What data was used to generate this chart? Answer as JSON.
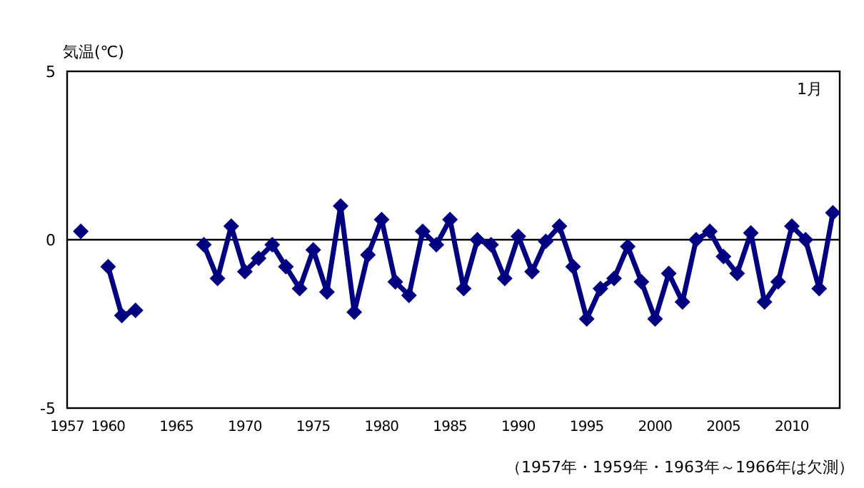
{
  "chart_data": {
    "type": "line",
    "ylabel": "気温(℃)",
    "x": [
      1958,
      1959,
      1960,
      1961,
      1962,
      1963,
      1966,
      1967,
      1968,
      1969,
      1970,
      1971,
      1972,
      1973,
      1974,
      1975,
      1976,
      1977,
      1978,
      1979,
      1980,
      1981,
      1982,
      1983,
      1984,
      1985,
      1986,
      1987,
      1988,
      1989,
      1990,
      1991,
      1992,
      1993,
      1994,
      1995,
      1996,
      1997,
      1998,
      1999,
      2000,
      2001,
      2002,
      2003,
      2004,
      2005,
      2006,
      2007,
      2008,
      2009,
      2010,
      2011,
      2012,
      2013
    ],
    "series": [
      {
        "color": "#000080",
        "values": [
          0.25,
          null,
          -0.8,
          -2.25,
          -2.1,
          null,
          null,
          -0.15,
          -1.15,
          0.4,
          -0.95,
          -0.55,
          -0.15,
          -0.8,
          -1.45,
          -0.3,
          -1.55,
          1.0,
          -2.15,
          -0.45,
          0.6,
          -1.25,
          -1.65,
          0.25,
          -0.15,
          0.6,
          -1.45,
          0.0,
          -0.15,
          -1.15,
          0.1,
          -0.95,
          -0.05,
          0.4,
          -0.8,
          -2.35,
          -1.45,
          -1.15,
          -0.2,
          -1.25,
          -2.35,
          -1.0,
          -1.85,
          0.0,
          0.25,
          -0.5,
          -1.0,
          0.2,
          -1.85,
          -1.25,
          0.4,
          0.0,
          -1.45,
          0.8
        ]
      }
    ],
    "xlim": [
      1957,
      2013.5
    ],
    "xticks": [
      1957,
      1960,
      1965,
      1970,
      1975,
      1980,
      1985,
      1990,
      1995,
      2000,
      2005,
      2010
    ],
    "ylim": [
      -5,
      5
    ],
    "yticks": [
      -5,
      0,
      5
    ],
    "ref_lines": [
      {
        "axis": "y",
        "value": 0,
        "color": "#000000"
      }
    ],
    "marker": "diamond",
    "line_style": "solid",
    "grid": false,
    "annotations": [
      "1月",
      "（1957年・1959年・1963年～1966年は欠測）"
    ]
  }
}
